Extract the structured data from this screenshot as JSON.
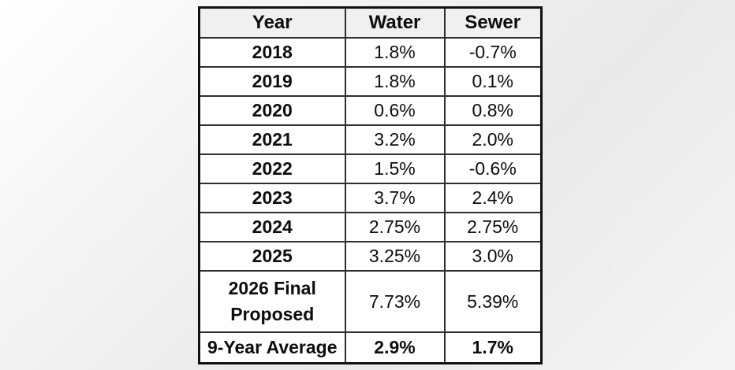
{
  "colors": {
    "table_border": "#111111",
    "inner_grid": "#2e2e2e",
    "header_bg": "#f0f0f1",
    "cell_bg": "#ffffff",
    "text": "#0d0d0d",
    "page_bg_gradient_start": "#ffffff",
    "page_bg_gradient_end": "#e9e9e9"
  },
  "chart_data": {
    "type": "table",
    "title": "",
    "columns": [
      "Year",
      "Water",
      "Sewer"
    ],
    "rows": [
      [
        "2018",
        "1.8%",
        "-0.7%"
      ],
      [
        "2019",
        "1.8%",
        "0.1%"
      ],
      [
        "2020",
        "0.6%",
        "0.8%"
      ],
      [
        "2021",
        "3.2%",
        "2.0%"
      ],
      [
        "2022",
        "1.5%",
        "-0.6%"
      ],
      [
        "2023",
        "3.7%",
        "2.4%"
      ],
      [
        "2024",
        "2.75%",
        "2.75%"
      ],
      [
        "2025",
        "3.25%",
        "3.0%"
      ],
      [
        "2026 Final Proposed",
        "7.73%",
        "5.39%"
      ],
      [
        "9-Year Average",
        "2.9%",
        "1.7%"
      ]
    ],
    "notes": {
      "bold_cells": "Year column, header row, and 9-Year Average row are bold; percentage values in data rows are regular weight",
      "multiline_row": "2026 Final Proposed wraps to two lines"
    }
  }
}
